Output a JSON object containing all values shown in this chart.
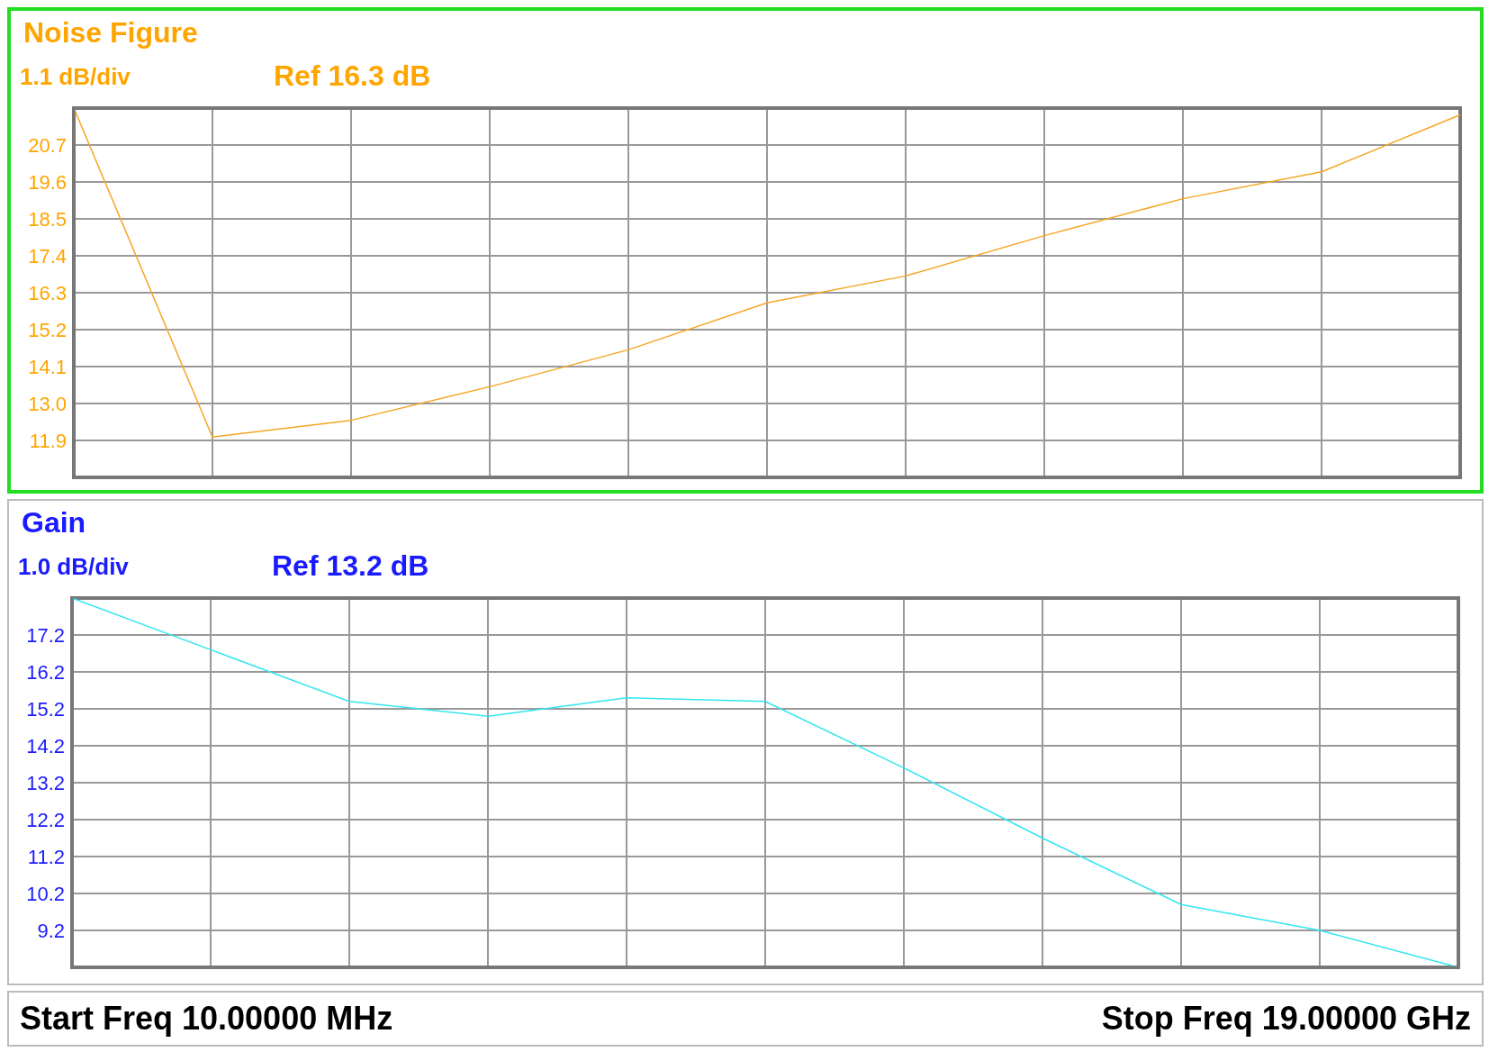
{
  "chart_data": [
    {
      "type": "line",
      "title": "Noise Figure",
      "annotations": [
        "1.1 dB/div",
        "Ref 16.3 dB"
      ],
      "categories": [
        null,
        null,
        null,
        null,
        null,
        null,
        null,
        null,
        null,
        null,
        null
      ],
      "series": [
        {
          "color": "#f5a623",
          "values": [
            21.8,
            12.0,
            12.5,
            13.5,
            14.6,
            16.0,
            16.8,
            18.0,
            19.1,
            19.9,
            21.6
          ]
        }
      ],
      "ylim": [
        10.8,
        21.8
      ],
      "yticks": [
        11.9,
        {
          "value": 13.0,
          "label": "13.0"
        },
        14.1,
        15.2,
        16.3,
        17.4,
        18.5,
        19.6,
        20.7
      ],
      "grid": true,
      "marker": "none",
      "tick_labels": "y"
    },
    {
      "type": "line",
      "title": "Gain",
      "annotations": [
        "1.0 dB/div",
        "Ref 13.2 dB",
        "Start Freq 10.00000 MHz",
        "Stop Freq 19.00000 GHz"
      ],
      "categories": [
        null,
        null,
        null,
        null,
        null,
        null,
        null,
        null,
        null,
        null,
        null
      ],
      "series": [
        {
          "color": "#33e6f0",
          "values": [
            18.2,
            16.8,
            15.4,
            15.0,
            15.5,
            15.4,
            13.6,
            11.7,
            9.9,
            9.2,
            8.2
          ]
        }
      ],
      "ylim": [
        8.2,
        18.2
      ],
      "yticks": [
        9.2,
        10.2,
        11.2,
        12.2,
        13.2,
        14.2,
        15.2,
        16.2,
        17.2
      ],
      "grid": true,
      "marker": "none",
      "tick_labels": "y"
    }
  ]
}
